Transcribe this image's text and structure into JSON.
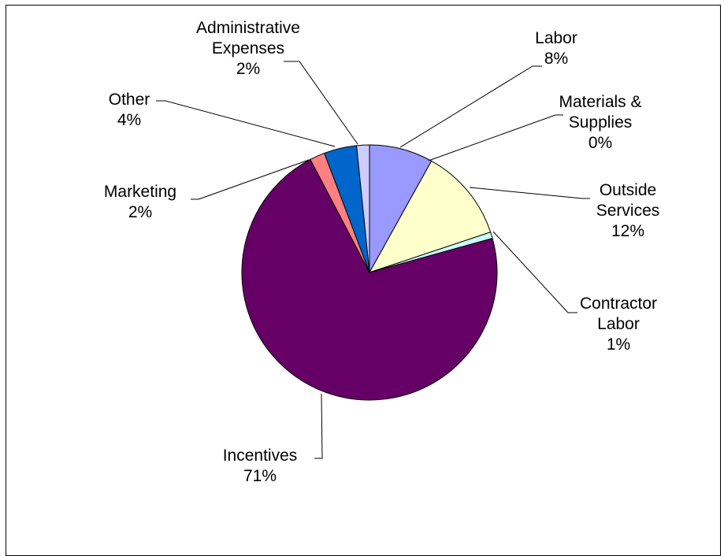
{
  "chart_data": {
    "type": "pie",
    "title": "",
    "start": "12 o'clock",
    "direction": "clockwise",
    "slices": [
      {
        "label": "Labor",
        "percent_label": "8%",
        "value": 8,
        "color": "#9999FF"
      },
      {
        "label": "Materials & Supplies",
        "percent_label": "0%",
        "value": 0,
        "color": "#993366"
      },
      {
        "label": "Outside Services",
        "percent_label": "12%",
        "value": 11.7,
        "color": "#FFFFCC"
      },
      {
        "label": "Contractor Labor",
        "percent_label": "1%",
        "value": 0.8,
        "color": "#CCFFFF"
      },
      {
        "label": "Incentives",
        "percent_label": "71%",
        "value": 71,
        "color": "#660066"
      },
      {
        "label": "Marketing",
        "percent_label": "2%",
        "value": 1.9,
        "color": "#FF8080"
      },
      {
        "label": "Other",
        "percent_label": "4%",
        "value": 4.1,
        "color": "#0066CC"
      },
      {
        "label": "Administrative Expenses",
        "percent_label": "2%",
        "value": 1.6,
        "color": "#CCCCFF"
      }
    ],
    "label_lines": {
      "Labor": [
        "Labor"
      ],
      "Materials & Supplies": [
        "Materials &",
        "Supplies"
      ],
      "Outside Services": [
        "Outside",
        "Services"
      ],
      "Contractor Labor": [
        "Contractor",
        "Labor"
      ],
      "Incentives": [
        "Incentives"
      ],
      "Marketing": [
        "Marketing"
      ],
      "Other": [
        "Other"
      ],
      "Administrative Expenses": [
        "Administrative",
        "Expenses"
      ]
    }
  }
}
